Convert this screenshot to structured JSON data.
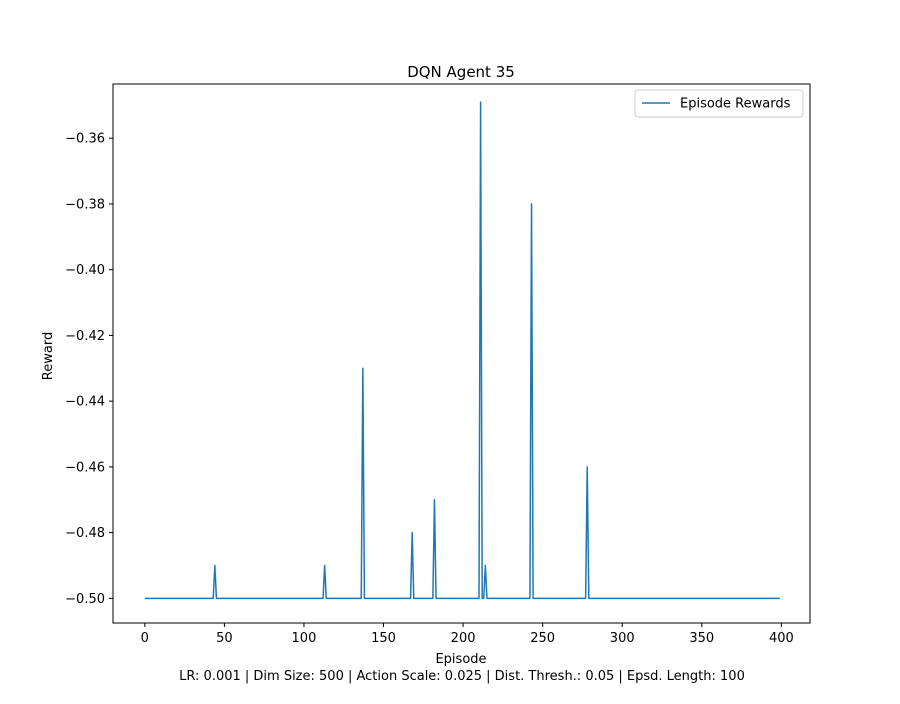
{
  "chart_data": {
    "type": "line",
    "title": "DQN Agent 35",
    "xlabel": "Episode",
    "ylabel": "Reward",
    "caption": "LR: 0.001 | Dim Size: 500 | Action Scale: 0.025 | Dist. Thresh.: 0.05 | Epsd. Length: 100",
    "xlim": [
      -20,
      418
    ],
    "ylim": [
      -0.5075,
      -0.3435
    ],
    "x_ticks": [
      0,
      50,
      100,
      150,
      200,
      250,
      300,
      350,
      400
    ],
    "x_tick_labels": [
      "0",
      "50",
      "100",
      "150",
      "200",
      "250",
      "300",
      "350",
      "400"
    ],
    "y_ticks": [
      -0.5,
      -0.48,
      -0.46,
      -0.44,
      -0.42,
      -0.4,
      -0.38,
      -0.36
    ],
    "y_tick_labels": [
      "−0.50",
      "−0.48",
      "−0.46",
      "−0.44",
      "−0.42",
      "−0.40",
      "−0.38",
      "−0.36"
    ],
    "grid": false,
    "legend_position": "top-right",
    "line_color": "#1f77b4",
    "series": [
      {
        "name": "Episode Rewards",
        "x_range": [
          0,
          399
        ],
        "baseline": -0.5,
        "spikes": [
          {
            "x": 44,
            "y": -0.49
          },
          {
            "x": 113,
            "y": -0.49
          },
          {
            "x": 137,
            "y": -0.43
          },
          {
            "x": 168,
            "y": -0.48
          },
          {
            "x": 182,
            "y": -0.47
          },
          {
            "x": 211,
            "y": -0.349
          },
          {
            "x": 214,
            "y": -0.49
          },
          {
            "x": 243,
            "y": -0.38
          },
          {
            "x": 278,
            "y": -0.46
          }
        ]
      }
    ]
  }
}
